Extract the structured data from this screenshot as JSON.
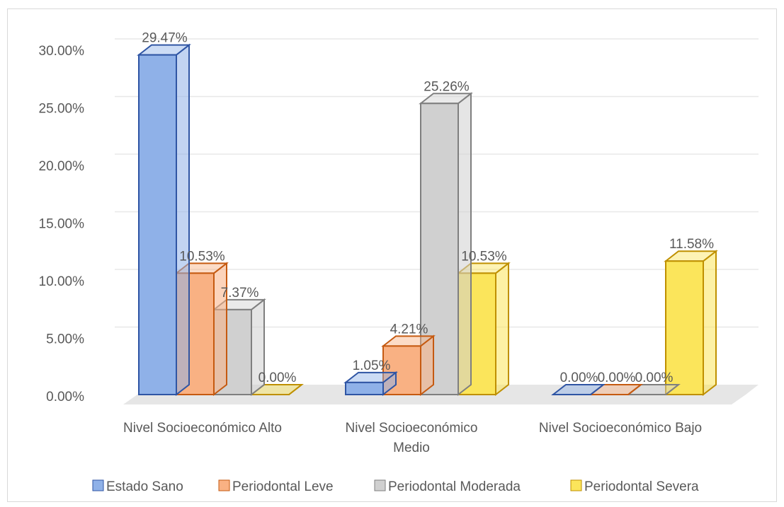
{
  "chart_data": {
    "type": "bar",
    "categories": [
      "Nivel Socioeconómico Alto",
      "Nivel Socioeconómico Medio",
      "Nivel Socioeconómico Bajo"
    ],
    "series": [
      {
        "name": "Estado Sano",
        "values": [
          29.47,
          1.05,
          0.0
        ],
        "color": "#8FB1E8",
        "stroke": "#2F55A4"
      },
      {
        "name": "Periodontal Leve",
        "values": [
          10.53,
          4.21,
          0.0
        ],
        "color": "#F9B183",
        "stroke": "#C55A11"
      },
      {
        "name": "Periodontal Moderada",
        "values": [
          7.37,
          25.26,
          0.0
        ],
        "color": "#D0D0D0",
        "stroke": "#7F7F7F"
      },
      {
        "name": "Periodontal Severa",
        "values": [
          0.0,
          10.53,
          11.58
        ],
        "color": "#FBE55B",
        "stroke": "#BF9000"
      }
    ],
    "data_labels": [
      [
        "29.47%",
        "1.05%",
        "0.00%"
      ],
      [
        "10.53%",
        "4.21%",
        "0.00%"
      ],
      [
        "7.37%",
        "25.26%",
        "0.00%"
      ],
      [
        "0.00%",
        "10.53%",
        "11.58%"
      ]
    ],
    "y_ticks": [
      "0.00%",
      "5.00%",
      "10.00%",
      "15.00%",
      "20.00%",
      "25.00%",
      "30.00%"
    ],
    "ylim": [
      0,
      30
    ],
    "style": "3d-clustered",
    "grid": true,
    "legend_position": "bottom"
  }
}
